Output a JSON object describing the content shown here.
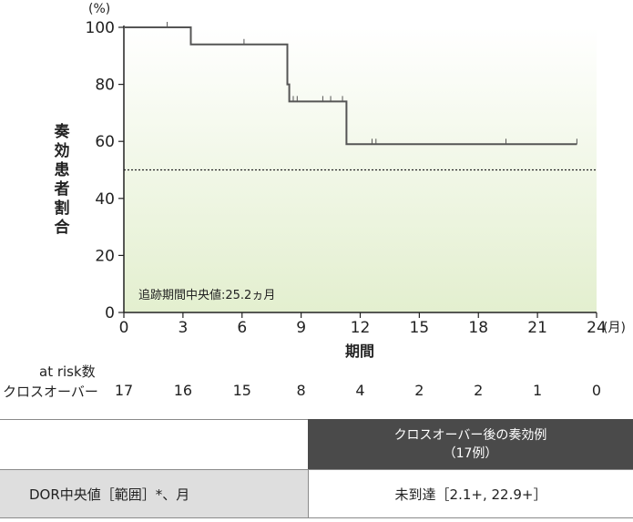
{
  "chart_data": {
    "type": "line",
    "subtype": "kaplan-meier",
    "ylabel": "奏効患者割合",
    "y_unit": "(%)",
    "xlabel": "期間",
    "x_unit": "(月)",
    "xlim": [
      0,
      24
    ],
    "ylim": [
      0,
      100
    ],
    "x_ticks": [
      0,
      3,
      6,
      9,
      12,
      15,
      18,
      21,
      24
    ],
    "y_ticks": [
      0,
      20,
      40,
      60,
      80,
      100
    ],
    "reference_line_y": 50,
    "annotation": "追跡期間中央値:25.2ヵ月",
    "series": [
      {
        "steps": [
          [
            0,
            100
          ],
          [
            3.4,
            100
          ],
          [
            3.4,
            94
          ],
          [
            8.3,
            94
          ],
          [
            8.3,
            80
          ],
          [
            8.4,
            80
          ],
          [
            8.4,
            74
          ],
          [
            11.3,
            74
          ],
          [
            11.3,
            59
          ],
          [
            23,
            59
          ]
        ],
        "censored": [
          [
            2.2,
            100
          ],
          [
            6.1,
            94
          ],
          [
            8.6,
            74
          ],
          [
            8.8,
            74
          ],
          [
            10.1,
            74
          ],
          [
            10.5,
            74
          ],
          [
            11.1,
            74
          ],
          [
            12.6,
            59
          ],
          [
            12.8,
            59
          ],
          [
            19.4,
            59
          ],
          [
            23,
            59
          ]
        ]
      }
    ]
  },
  "risk_table": {
    "title": "at risk数",
    "row_label": "クロスオーバー",
    "times": [
      0,
      3,
      6,
      9,
      12,
      15,
      18,
      21,
      24
    ],
    "counts": [
      "17",
      "16",
      "15",
      "8",
      "4",
      "2",
      "2",
      "1",
      "0"
    ]
  },
  "dor_table": {
    "header_line1": "クロスオーバー後の奏効例",
    "header_line2": "（17例）",
    "row_label": "DOR中央値［範囲］*、月",
    "row_value": "未到達［2.1+, 22.9+］"
  },
  "colors": {
    "plot_bg_top": "#ffffff",
    "plot_bg_bottom": "#e3efcf",
    "curve": "#555555",
    "header_dark": "#4a4a4a",
    "label_cell": "#dedede"
  }
}
